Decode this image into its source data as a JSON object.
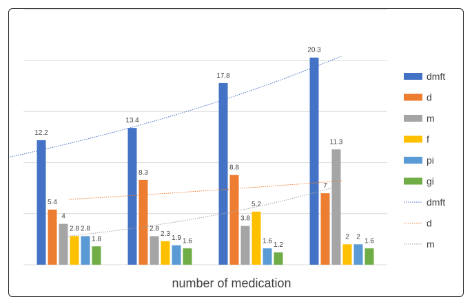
{
  "chart_data": {
    "type": "bar",
    "categories": [
      "",
      "",
      "",
      ""
    ],
    "series": [
      {
        "name": "dmft",
        "values": [
          12.2,
          13.4,
          17.8,
          20.3
        ],
        "color": "#4472C4"
      },
      {
        "name": "d",
        "values": [
          5.4,
          8.3,
          8.8,
          7
        ],
        "color": "#ED7D31"
      },
      {
        "name": "m",
        "values": [
          4,
          2.8,
          3.8,
          11.3
        ],
        "color": "#A5A5A5"
      },
      {
        "name": "f",
        "values": [
          2.8,
          2.3,
          5.2,
          2
        ],
        "color": "#FFC000"
      },
      {
        "name": "pi",
        "values": [
          2.8,
          1.9,
          1.6,
          2
        ],
        "color": "#5B9BD5"
      },
      {
        "name": "gi",
        "values": [
          1.8,
          1.6,
          1.2,
          1.6
        ],
        "color": "#70AD47"
      }
    ],
    "trendlines": [
      {
        "name": "dmft",
        "series": "dmft",
        "color": "#4472C4"
      },
      {
        "name": "d",
        "series": "d",
        "color": "#ED7D31"
      },
      {
        "name": "m",
        "series": "m",
        "color": "#A5A5A5"
      }
    ],
    "xlabel": "number of medication",
    "ylabel": "",
    "ylim": [
      0,
      25
    ],
    "gridlines": [
      5,
      10,
      15,
      20,
      25
    ],
    "grid": true,
    "legend_position": "right"
  }
}
